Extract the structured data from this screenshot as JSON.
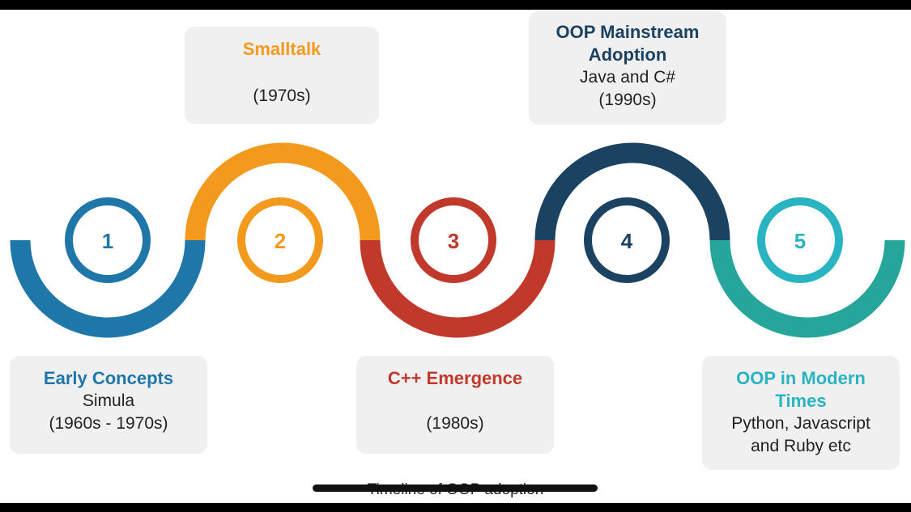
{
  "colors": {
    "step1": "#1f77a9",
    "step2": "#f39a1e",
    "step3": "#c0392b",
    "step4": "#1b4261",
    "step5": "#26a69a",
    "step5_title": "#2ab3c0",
    "card_bg": "#f0f0f0"
  },
  "steps": [
    {
      "number": "1",
      "title": "Early Concepts",
      "description": "Simula",
      "period": "(1960s - 1970s)"
    },
    {
      "number": "2",
      "title": "Smalltalk",
      "description": "",
      "period": "(1970s)"
    },
    {
      "number": "3",
      "title": "C++ Emergence",
      "description": "",
      "period": "(1980s)"
    },
    {
      "number": "4",
      "title": "OOP Mainstream Adoption",
      "description": "Java and C#",
      "period": "(1990s)"
    },
    {
      "number": "5",
      "title": "OOP in Modern Times",
      "description": "Python, Javascript and Ruby etc",
      "period": ""
    }
  ],
  "caption": "Timeline of OOP adoption"
}
